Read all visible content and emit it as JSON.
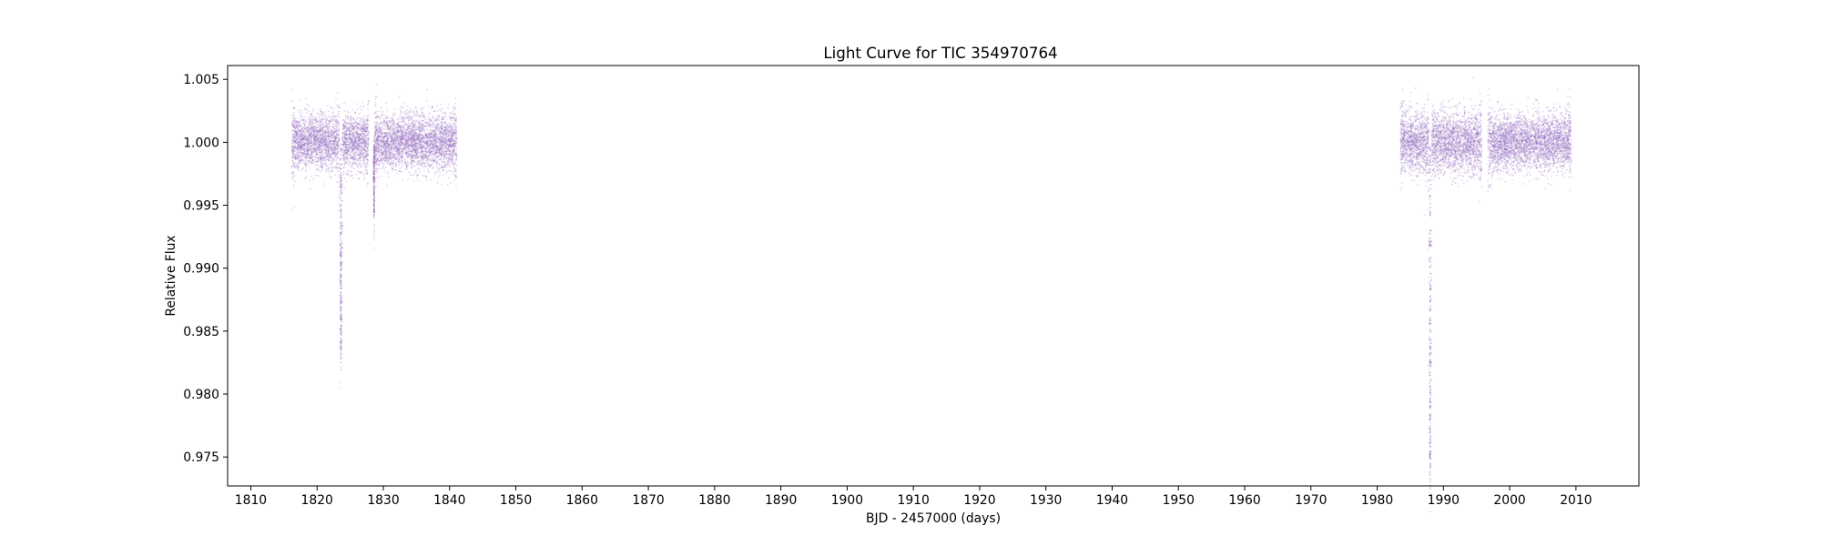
{
  "chart_data": {
    "type": "scatter",
    "title": "Light Curve for TIC 354970764",
    "xlabel": "BJD - 2457000 (days)",
    "ylabel": "Relative Flux",
    "xlim": [
      1806.5,
      2019.5
    ],
    "ylim": [
      0.9727,
      1.0061
    ],
    "xticks": [
      1810,
      1820,
      1830,
      1840,
      1850,
      1860,
      1870,
      1880,
      1890,
      1900,
      1910,
      1920,
      1930,
      1940,
      1950,
      1960,
      1970,
      1980,
      1990,
      2000,
      2010
    ],
    "yticks": [
      0.975,
      0.98,
      0.985,
      0.99,
      0.995,
      1.0,
      1.005
    ],
    "ytick_labels": [
      "0.975",
      "0.980",
      "0.985",
      "0.990",
      "0.995",
      "1.000",
      "1.005"
    ],
    "grid": false,
    "series_color": "#9467bd",
    "segments": [
      {
        "x_start": 1816.2,
        "x_end": 1827.8,
        "baseline": 1.0,
        "scatter": 0.0011
      },
      {
        "x_start": 1828.6,
        "x_end": 1841.1,
        "baseline": 1.0,
        "scatter": 0.0011
      },
      {
        "x_start": 1983.5,
        "x_end": 1995.8,
        "baseline": 1.0,
        "scatter": 0.0012
      },
      {
        "x_start": 1996.7,
        "x_end": 2009.3,
        "baseline": 1.0,
        "scatter": 0.0011
      }
    ],
    "transits": [
      {
        "center": 1823.6,
        "min_flux": 0.9843,
        "half_width": 0.25
      },
      {
        "center": 1828.6,
        "min_flux": 0.9942,
        "half_width": 0.1
      },
      {
        "center": 1988.0,
        "min_flux": 0.9745,
        "half_width": 0.25
      }
    ]
  }
}
